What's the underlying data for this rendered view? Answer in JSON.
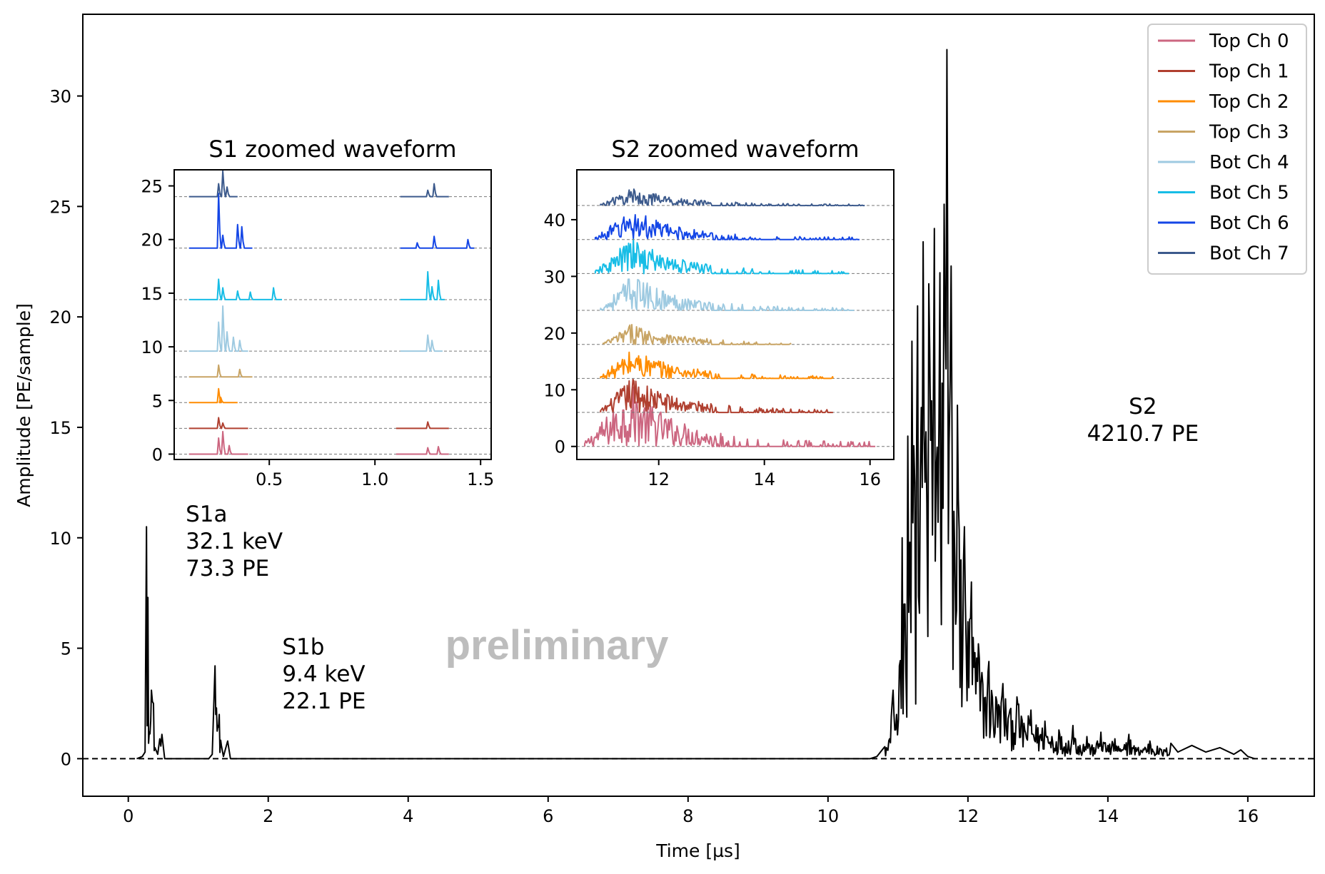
{
  "chart_data": [
    {
      "type": "line",
      "title": "",
      "xlabel": "Time [µs]",
      "ylabel": "Amplitude [PE/sample]",
      "xlim": [
        -0.65,
        16.95
      ],
      "ylim": [
        -1.7,
        33.7
      ],
      "xticks": [
        "0",
        "2",
        "4",
        "6",
        "8",
        "10",
        "12",
        "14",
        "16"
      ],
      "yticks": [
        "0",
        "5",
        "10",
        "15",
        "20",
        "25",
        "30"
      ],
      "baseline": 0,
      "grid": false,
      "series": [
        {
          "color": "#000000",
          "points": [
            [
              0.12,
              0.0
            ],
            [
              0.2,
              0.1
            ],
            [
              0.24,
              0.3
            ],
            [
              0.26,
              10.5
            ],
            [
              0.28,
              7.3
            ],
            [
              0.3,
              1.2
            ],
            [
              0.33,
              3.1
            ],
            [
              0.36,
              2.5
            ],
            [
              0.38,
              0.5
            ],
            [
              0.42,
              0.2
            ],
            [
              0.45,
              0.9
            ],
            [
              0.48,
              1.1
            ],
            [
              0.52,
              0.0
            ],
            [
              1.15,
              0.0
            ],
            [
              1.2,
              0.2
            ],
            [
              1.24,
              4.2
            ],
            [
              1.26,
              2.3
            ],
            [
              1.28,
              1.5
            ],
            [
              1.3,
              2.0
            ],
            [
              1.33,
              0.6
            ],
            [
              1.36,
              0.1
            ],
            [
              1.42,
              0.8
            ],
            [
              1.46,
              0.0
            ],
            [
              10.6,
              0.0
            ],
            [
              10.7,
              0.1
            ],
            [
              10.8,
              0.5
            ],
            [
              10.88,
              0.9
            ],
            [
              10.93,
              3.1
            ],
            [
              10.98,
              2.0
            ],
            [
              11.02,
              4.2
            ],
            [
              11.06,
              10.0
            ],
            [
              11.1,
              7.0
            ],
            [
              11.14,
              14.6
            ],
            [
              11.17,
              9.8
            ],
            [
              11.2,
              18.9
            ],
            [
              11.24,
              12.5
            ],
            [
              11.28,
              20.5
            ],
            [
              11.32,
              13.1
            ],
            [
              11.36,
              23.4
            ],
            [
              11.4,
              14.8
            ],
            [
              11.44,
              21.5
            ],
            [
              11.48,
              16.2
            ],
            [
              11.52,
              24.0
            ],
            [
              11.56,
              14.1
            ],
            [
              11.6,
              22.0
            ],
            [
              11.63,
              17.0
            ],
            [
              11.66,
              25.1
            ],
            [
              11.7,
              32.1
            ],
            [
              11.73,
              14.2
            ],
            [
              11.76,
              22.3
            ],
            [
              11.8,
              11.2
            ],
            [
              11.85,
              16.0
            ],
            [
              11.9,
              9.0
            ],
            [
              11.95,
              10.5
            ],
            [
              12.0,
              6.2
            ],
            [
              12.05,
              8.0
            ],
            [
              12.1,
              4.8
            ],
            [
              12.15,
              5.2
            ],
            [
              12.2,
              3.9
            ],
            [
              12.3,
              4.4
            ],
            [
              12.4,
              2.8
            ],
            [
              12.5,
              3.4
            ],
            [
              12.6,
              2.2
            ],
            [
              12.7,
              2.8
            ],
            [
              12.8,
              1.6
            ],
            [
              12.9,
              2.2
            ],
            [
              13.0,
              1.4
            ],
            [
              13.1,
              1.7
            ],
            [
              13.2,
              1.0
            ],
            [
              13.3,
              1.3
            ],
            [
              13.4,
              0.7
            ],
            [
              13.5,
              1.5
            ],
            [
              13.6,
              0.6
            ],
            [
              13.7,
              1.0
            ],
            [
              13.8,
              0.5
            ],
            [
              13.9,
              1.2
            ],
            [
              14.0,
              0.6
            ],
            [
              14.1,
              0.9
            ],
            [
              14.2,
              0.4
            ],
            [
              14.3,
              1.1
            ],
            [
              14.4,
              0.5
            ],
            [
              14.6,
              0.8
            ],
            [
              14.8,
              0.4
            ],
            [
              14.9,
              0.7
            ],
            [
              15.0,
              0.3
            ],
            [
              15.2,
              0.6
            ],
            [
              15.4,
              0.3
            ],
            [
              15.6,
              0.5
            ],
            [
              15.8,
              0.2
            ],
            [
              15.9,
              0.4
            ],
            [
              16.0,
              0.1
            ],
            [
              16.1,
              0.0
            ]
          ]
        }
      ],
      "annotations": [
        {
          "lines": [
            "S1a",
            "32.1 keV",
            "73.3 PE"
          ],
          "x": 0.82,
          "y": 9.5
        },
        {
          "lines": [
            "S1b",
            "9.4 keV",
            "22.1 PE"
          ],
          "x": 2.2,
          "y": 3.5
        },
        {
          "lines": [
            "S2",
            "4210.7 PE"
          ],
          "x": 14.5,
          "y": 15.0
        }
      ],
      "watermark": "preliminary",
      "legend": {
        "placement": "top-right",
        "entries": [
          {
            "label": "Top Ch 0",
            "color": "#cc6680"
          },
          {
            "label": "Top Ch 1",
            "color": "#b04030"
          },
          {
            "label": "Top Ch 2",
            "color": "#ff8c00"
          },
          {
            "label": "Top Ch 3",
            "color": "#c8a464"
          },
          {
            "label": "Bot Ch 4",
            "color": "#9ecae1"
          },
          {
            "label": "Bot Ch 5",
            "color": "#17bde6"
          },
          {
            "label": "Bot Ch 6",
            "color": "#1446e6"
          },
          {
            "label": "Bot Ch 7",
            "color": "#3c5a8c"
          }
        ]
      }
    },
    {
      "type": "line",
      "title": "S1 zoomed waveform",
      "xlim": [
        0.05,
        1.55
      ],
      "ylim": [
        -0.5,
        26.5
      ],
      "xticks": [
        "0.5",
        "1.0",
        "1.5"
      ],
      "yticks": [
        "0",
        "5",
        "10",
        "15",
        "20",
        "25"
      ],
      "channel_offsets": [
        0,
        2.4,
        4.8,
        7.2,
        9.6,
        14.4,
        19.2,
        24.0
      ],
      "channel_colors": [
        "#cc6680",
        "#b04030",
        "#ff8c00",
        "#c8a464",
        "#9ecae1",
        "#17bde6",
        "#1446e6",
        "#3c5a8c"
      ],
      "channel_segments": [
        [
          {
            "x0": 0.12,
            "x1": 0.4,
            "peaks": [
              [
                0.26,
                1.5
              ],
              [
                0.28,
                2.1
              ],
              [
                0.31,
                0.8
              ]
            ]
          },
          {
            "x0": 1.1,
            "x1": 1.35,
            "peaks": [
              [
                1.25,
                0.6
              ],
              [
                1.3,
                0.7
              ]
            ]
          }
        ],
        [
          {
            "x0": 0.12,
            "x1": 0.4,
            "peaks": [
              [
                0.26,
                1.0
              ],
              [
                0.28,
                0.5
              ]
            ]
          },
          {
            "x0": 1.1,
            "x1": 1.35,
            "peaks": [
              [
                1.25,
                0.6
              ]
            ]
          }
        ],
        [
          {
            "x0": 0.12,
            "x1": 0.35,
            "peaks": [
              [
                0.26,
                1.3
              ],
              [
                0.27,
                0.5
              ]
            ]
          }
        ],
        [
          {
            "x0": 0.12,
            "x1": 0.42,
            "peaks": [
              [
                0.26,
                1.1
              ],
              [
                0.36,
                0.7
              ]
            ]
          }
        ],
        [
          {
            "x0": 0.12,
            "x1": 0.4,
            "peaks": [
              [
                0.26,
                2.7
              ],
              [
                0.28,
                4.2
              ],
              [
                0.3,
                1.8
              ],
              [
                0.33,
                1.3
              ],
              [
                0.36,
                1.0
              ]
            ]
          },
          {
            "x0": 1.12,
            "x1": 1.32,
            "peaks": [
              [
                1.25,
                1.5
              ],
              [
                1.27,
                1.0
              ]
            ]
          }
        ],
        [
          {
            "x0": 0.12,
            "x1": 0.56,
            "peaks": [
              [
                0.26,
                1.9
              ],
              [
                0.28,
                1.1
              ],
              [
                0.35,
                0.8
              ],
              [
                0.41,
                0.7
              ],
              [
                0.52,
                1.1
              ]
            ]
          },
          {
            "x0": 1.12,
            "x1": 1.33,
            "peaks": [
              [
                1.25,
                2.6
              ],
              [
                1.27,
                1.2
              ],
              [
                1.3,
                1.8
              ]
            ]
          }
        ],
        [
          {
            "x0": 0.12,
            "x1": 0.42,
            "peaks": [
              [
                0.26,
                5.1
              ],
              [
                0.28,
                1.2
              ],
              [
                0.35,
                2.2
              ],
              [
                0.37,
                2.0
              ]
            ]
          },
          {
            "x0": 1.12,
            "x1": 1.47,
            "peaks": [
              [
                1.2,
                0.5
              ],
              [
                1.28,
                1.1
              ],
              [
                1.44,
                0.8
              ]
            ]
          }
        ],
        [
          {
            "x0": 0.12,
            "x1": 0.35,
            "peaks": [
              [
                0.26,
                1.2
              ],
              [
                0.28,
                2.4
              ],
              [
                0.3,
                0.9
              ]
            ]
          },
          {
            "x0": 1.12,
            "x1": 1.35,
            "peaks": [
              [
                1.25,
                0.6
              ],
              [
                1.28,
                1.2
              ]
            ]
          }
        ]
      ]
    },
    {
      "type": "line",
      "title": "S2 zoomed waveform",
      "xlim": [
        10.45,
        16.45
      ],
      "ylim": [
        -2.3,
        48.8
      ],
      "xticks": [
        "12",
        "14",
        "16"
      ],
      "yticks": [
        "0",
        "10",
        "20",
        "30",
        "40"
      ],
      "channel_offsets": [
        0,
        6,
        12,
        18,
        24,
        30.5,
        36.5,
        42.5
      ],
      "channel_colors": [
        "#cc6680",
        "#b04030",
        "#ff8c00",
        "#c8a464",
        "#9ecae1",
        "#17bde6",
        "#1446e6",
        "#3c5a8c"
      ],
      "channel_amplitudes": [
        10,
        6,
        5,
        3.5,
        6,
        6,
        5,
        3
      ],
      "channel_spans": [
        [
          10.6,
          16.1
        ],
        [
          10.9,
          15.3
        ],
        [
          10.9,
          15.3
        ],
        [
          10.95,
          14.5
        ],
        [
          10.9,
          15.7
        ],
        [
          10.8,
          15.6
        ],
        [
          10.8,
          15.8
        ],
        [
          10.9,
          15.9
        ]
      ]
    }
  ]
}
